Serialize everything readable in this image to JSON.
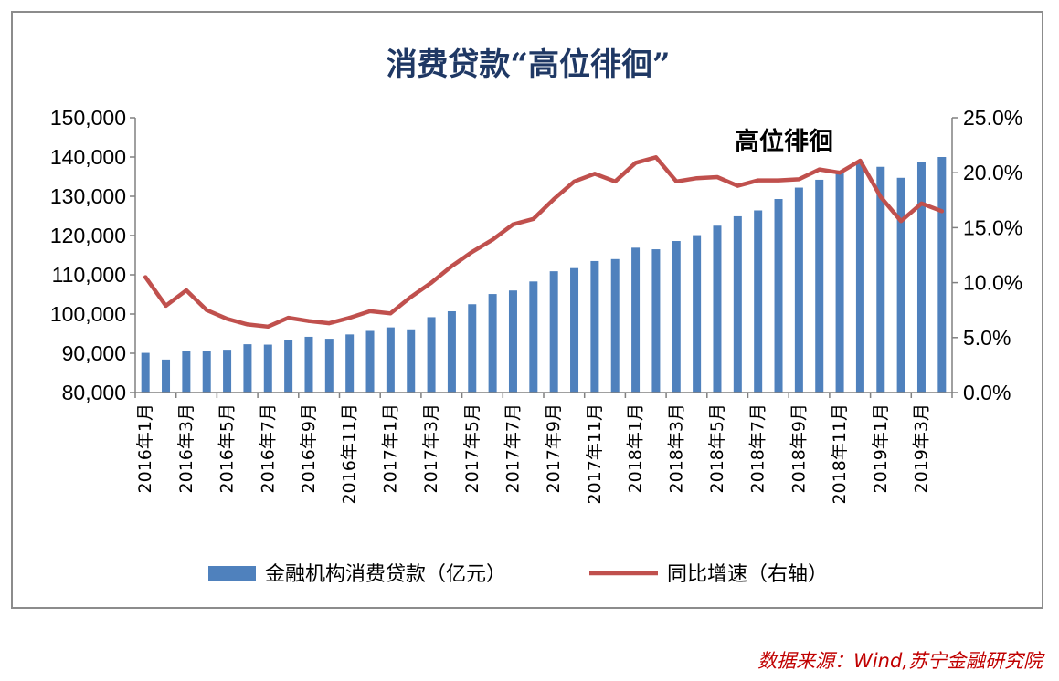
{
  "chart_data": {
    "type": "bar",
    "title": "消费贷款“高位徘徊”",
    "annotation": "高位徘徊",
    "x": [
      "2016年1月",
      "2016年2月",
      "2016年3月",
      "2016年4月",
      "2016年5月",
      "2016年6月",
      "2016年7月",
      "2016年8月",
      "2016年9月",
      "2016年10月",
      "2016年11月",
      "2016年12月",
      "2017年1月",
      "2017年2月",
      "2017年3月",
      "2017年4月",
      "2017年5月",
      "2017年6月",
      "2017年7月",
      "2017年8月",
      "2017年9月",
      "2017年10月",
      "2017年11月",
      "2017年12月",
      "2018年1月",
      "2018年2月",
      "2018年3月",
      "2018年4月",
      "2018年5月",
      "2018年6月",
      "2018年7月",
      "2018年8月",
      "2018年9月",
      "2018年10月",
      "2018年11月",
      "2018年12月",
      "2019年1月",
      "2019年2月",
      "2019年3月",
      "2019年4月"
    ],
    "x_tick_labels": [
      "2016年1月",
      "2016年3月",
      "2016年5月",
      "2016年7月",
      "2016年9月",
      "2016年11月",
      "2017年1月",
      "2017年3月",
      "2017年5月",
      "2017年7月",
      "2017年9月",
      "2017年11月",
      "2018年1月",
      "2018年3月",
      "2018年5月",
      "2018年7月",
      "2018年9月",
      "2018年11月",
      "2019年1月",
      "2019年3月"
    ],
    "series": [
      {
        "name": "金融机构消费贷款（亿元）",
        "kind": "bar",
        "axis": "left",
        "color": "#4f81bd",
        "values": [
          90100,
          88400,
          90600,
          90600,
          90900,
          92300,
          92200,
          93400,
          94200,
          93700,
          94800,
          95700,
          96600,
          96100,
          99200,
          100700,
          102500,
          105100,
          106000,
          108300,
          110900,
          111700,
          113500,
          114000,
          116900,
          116500,
          118600,
          120100,
          122500,
          124900,
          126400,
          129300,
          132200,
          134200,
          136100,
          138900,
          137500,
          134700,
          138800,
          140000
        ]
      },
      {
        "name": "同比增速（右轴）",
        "kind": "line",
        "axis": "right",
        "color": "#c0504d",
        "values": [
          10.5,
          7.9,
          9.3,
          7.5,
          6.7,
          6.2,
          6.0,
          6.8,
          6.5,
          6.3,
          6.8,
          7.4,
          7.2,
          8.7,
          10.0,
          11.5,
          12.8,
          13.9,
          15.3,
          15.8,
          17.6,
          19.2,
          19.9,
          19.2,
          20.9,
          21.4,
          19.2,
          19.5,
          19.6,
          18.8,
          19.3,
          19.3,
          19.4,
          20.3,
          20.0,
          21.1,
          17.8,
          15.6,
          17.2,
          16.5
        ]
      }
    ],
    "left_axis": {
      "ylim": [
        80000,
        150000
      ],
      "ticks": [
        "80,000",
        "90,000",
        "100,000",
        "110,000",
        "120,000",
        "130,000",
        "140,000",
        "150,000"
      ]
    },
    "right_axis": {
      "ylim": [
        0,
        25
      ],
      "ticks": [
        "0.0%",
        "5.0%",
        "10.0%",
        "15.0%",
        "20.0%",
        "25.0%"
      ]
    },
    "grid": false,
    "legend_position": "bottom"
  },
  "source": "数据来源：Wind,苏宁金融研究院"
}
